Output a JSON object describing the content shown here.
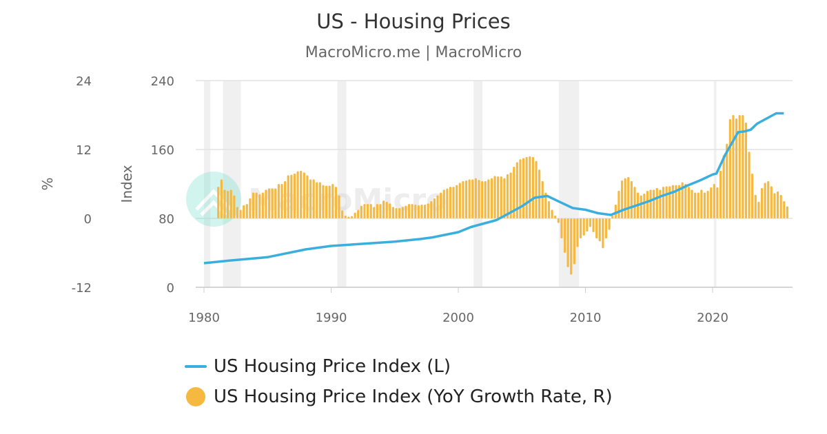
{
  "title": "US - Housing Prices",
  "subtitle": "MacroMicro.me | MacroMicro",
  "watermark": "MacroMicro",
  "chart_data": {
    "type": "bar+line",
    "title": "US - Housing Prices",
    "xlim": [
      1980,
      2026
    ],
    "x_ticks": [
      "1980",
      "1990",
      "2000",
      "2010",
      "2020"
    ],
    "axes": {
      "pct": {
        "label": "%",
        "ylim": [
          -12,
          24
        ],
        "ticks": [
          "24",
          "12",
          "0",
          "-12"
        ]
      },
      "index": {
        "label": "Index",
        "ylim": [
          0,
          240
        ],
        "ticks": [
          "240",
          "160",
          "80",
          "0"
        ]
      }
    },
    "grid": true,
    "legend_position": "bottom",
    "recessions": [
      [
        1980.0,
        1980.5
      ],
      [
        1981.5,
        1982.9
      ],
      [
        1990.5,
        1991.2
      ],
      [
        2001.2,
        2001.9
      ],
      [
        2007.9,
        2009.5
      ],
      [
        2020.1,
        2020.3
      ]
    ],
    "series": [
      {
        "name": "US Housing Price Index (L)",
        "type": "line",
        "axis": "index",
        "color": "#3aaedc",
        "points": [
          [
            1980,
            28
          ],
          [
            1982,
            31
          ],
          [
            1985,
            35
          ],
          [
            1988,
            44
          ],
          [
            1990,
            48
          ],
          [
            1992,
            50
          ],
          [
            1995,
            53
          ],
          [
            1997,
            56
          ],
          [
            1998,
            58
          ],
          [
            2000,
            64
          ],
          [
            2001,
            70
          ],
          [
            2002,
            74
          ],
          [
            2003,
            78
          ],
          [
            2004,
            86
          ],
          [
            2005,
            94
          ],
          [
            2006,
            104
          ],
          [
            2007,
            106
          ],
          [
            2008,
            99
          ],
          [
            2009,
            92
          ],
          [
            2010,
            90
          ],
          [
            2011,
            86
          ],
          [
            2012,
            84
          ],
          [
            2013,
            90
          ],
          [
            2014,
            95
          ],
          [
            2015,
            100
          ],
          [
            2016,
            106
          ],
          [
            2017,
            111
          ],
          [
            2018,
            118
          ],
          [
            2019,
            124
          ],
          [
            2020,
            131
          ],
          [
            2020.3,
            132
          ],
          [
            2021,
            154
          ],
          [
            2022,
            180
          ],
          [
            2022.5,
            181
          ],
          [
            2023,
            183
          ],
          [
            2023.5,
            190
          ],
          [
            2024,
            194
          ],
          [
            2025,
            202
          ],
          [
            2025.6,
            202
          ]
        ]
      },
      {
        "name": "US Housing Price Index (YoY Growth Rate, R)",
        "type": "bar",
        "axis": "pct",
        "color": "#f5b941",
        "quarterly": [
          {
            "year": 1981,
            "values": [
              5.5,
              6.8,
              5.0,
              4.8
            ]
          },
          {
            "year": 1982,
            "values": [
              5.0,
              4.0,
              2.0,
              1.5
            ]
          },
          {
            "year": 1983,
            "values": [
              2.3,
              2.5,
              3.5,
              4.5
            ]
          },
          {
            "year": 1984,
            "values": [
              4.5,
              4.2,
              4.5,
              5.0
            ]
          },
          {
            "year": 1985,
            "values": [
              5.2,
              5.2,
              5.2,
              6.0
            ]
          },
          {
            "year": 1986,
            "values": [
              6.0,
              6.5,
              7.5,
              7.6
            ]
          },
          {
            "year": 1987,
            "values": [
              7.8,
              8.2,
              8.3,
              8.0
            ]
          },
          {
            "year": 1988,
            "values": [
              7.5,
              6.8,
              6.8,
              6.3
            ]
          },
          {
            "year": 1989,
            "values": [
              6.3,
              5.8,
              5.7,
              5.7
            ]
          },
          {
            "year": 1990,
            "values": [
              6.0,
              5.5,
              4.0,
              1.4
            ]
          },
          {
            "year": 1991,
            "values": [
              0.5,
              0.3,
              0.4,
              1.0
            ]
          },
          {
            "year": 1992,
            "values": [
              1.5,
              2.2,
              2.5,
              2.5
            ]
          },
          {
            "year": 1993,
            "values": [
              2.5,
              2.0,
              2.5,
              2.5
            ]
          },
          {
            "year": 1994,
            "values": [
              3.1,
              2.9,
              2.6,
              2.0
            ]
          },
          {
            "year": 1995,
            "values": [
              1.8,
              1.8,
              2.0,
              2.2
            ]
          },
          {
            "year": 1996,
            "values": [
              2.5,
              2.5,
              2.4,
              2.3
            ]
          },
          {
            "year": 1997,
            "values": [
              2.4,
              2.4,
              2.6,
              3.0
            ]
          },
          {
            "year": 1998,
            "values": [
              3.5,
              4.0,
              4.5,
              5.0
            ]
          },
          {
            "year": 1999,
            "values": [
              5.2,
              5.5,
              5.5,
              5.8
            ]
          },
          {
            "year": 2000,
            "values": [
              6.2,
              6.5,
              6.6,
              6.8
            ]
          },
          {
            "year": 2001,
            "values": [
              6.8,
              7.0,
              6.7,
              6.5
            ]
          },
          {
            "year": 2002,
            "values": [
              6.5,
              6.8,
              7.0,
              7.4
            ]
          },
          {
            "year": 2003,
            "values": [
              7.3,
              7.3,
              7.0,
              7.7
            ]
          },
          {
            "year": 2004,
            "values": [
              8.0,
              9.0,
              9.8,
              10.3
            ]
          },
          {
            "year": 2005,
            "values": [
              10.5,
              10.7,
              10.8,
              10.7
            ]
          },
          {
            "year": 2006,
            "values": [
              10.0,
              8.5,
              6.5,
              4.5
            ]
          },
          {
            "year": 2007,
            "values": [
              3.0,
              1.5,
              0.5,
              -0.8
            ]
          },
          {
            "year": 2008,
            "values": [
              -3.5,
              -6.0,
              -8.5,
              -9.8
            ]
          },
          {
            "year": 2009,
            "values": [
              -8.0,
              -5.0,
              -3.5,
              -3.0
            ]
          },
          {
            "year": 2010,
            "values": [
              -2.3,
              -1.5,
              -2.4,
              -3.5
            ]
          },
          {
            "year": 2011,
            "values": [
              -4.0,
              -5.2,
              -3.5,
              -2.0
            ]
          },
          {
            "year": 2012,
            "values": [
              0.5,
              2.4,
              4.8,
              6.6
            ]
          },
          {
            "year": 2013,
            "values": [
              7.0,
              7.2,
              6.5,
              5.5
            ]
          },
          {
            "year": 2014,
            "values": [
              4.5,
              4.0,
              4.3,
              4.8
            ]
          },
          {
            "year": 2015,
            "values": [
              5.0,
              5.0,
              5.3,
              5.0
            ]
          },
          {
            "year": 2016,
            "values": [
              5.5,
              5.6,
              5.6,
              5.8
            ]
          },
          {
            "year": 2017,
            "values": [
              5.8,
              5.8,
              6.3,
              6.0
            ]
          },
          {
            "year": 2018,
            "values": [
              5.5,
              5.0,
              4.5,
              4.5
            ]
          },
          {
            "year": 2019,
            "values": [
              5.0,
              4.5,
              4.8,
              5.4
            ]
          },
          {
            "year": 2020,
            "values": [
              6.0,
              5.4,
              8.3,
              11.0
            ]
          },
          {
            "year": 2021,
            "values": [
              13.0,
              17.3,
              18.0,
              17.4
            ]
          },
          {
            "year": 2022,
            "values": [
              18.0,
              18.0,
              16.7,
              11.6
            ]
          },
          {
            "year": 2023,
            "values": [
              7.8,
              4.1,
              2.9,
              5.3
            ]
          },
          {
            "year": 2024,
            "values": [
              6.2,
              6.5,
              5.6,
              4.4
            ]
          },
          {
            "year": 2025,
            "values": [
              4.7,
              4.1,
              3.0,
              2.1
            ]
          }
        ]
      }
    ]
  }
}
